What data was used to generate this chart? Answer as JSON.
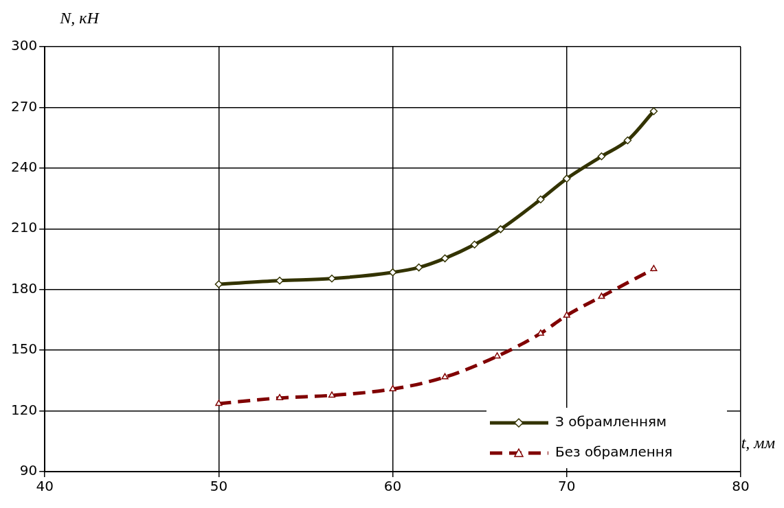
{
  "chart_data": {
    "type": "line",
    "xlabel": "t, мм",
    "ylabel": "N, кН",
    "xlim": [
      40,
      80
    ],
    "xticks": [
      40,
      50,
      60,
      70,
      80
    ],
    "ylim": [
      90,
      300
    ],
    "yticks": [
      90,
      120,
      150,
      180,
      210,
      240,
      270,
      300
    ],
    "grid": true,
    "legend": "bottom right",
    "series": [
      {
        "name": "З обрамленням",
        "color": "#333300",
        "marker": "diamond",
        "line_style": "solid",
        "x": [
          50,
          53.5,
          56.5,
          60,
          61.5,
          63,
          64.7,
          66.2,
          68.5,
          70,
          72,
          73.5,
          75
        ],
        "values": [
          182.6,
          184.4,
          185.4,
          188.5,
          190.9,
          195.4,
          202.2,
          209.8,
          224.5,
          234.8,
          245.8,
          253.7,
          268.1
        ]
      },
      {
        "name": "Без обрамлення",
        "color": "#800000",
        "marker": "triangle",
        "line_style": "dashed",
        "x": [
          50,
          53.5,
          56.5,
          60,
          63,
          66,
          68.5,
          70,
          72,
          75
        ],
        "values": [
          123.6,
          126.4,
          127.7,
          130.8,
          136.7,
          147,
          158.3,
          167.2,
          176.5,
          190.2
        ]
      }
    ]
  }
}
